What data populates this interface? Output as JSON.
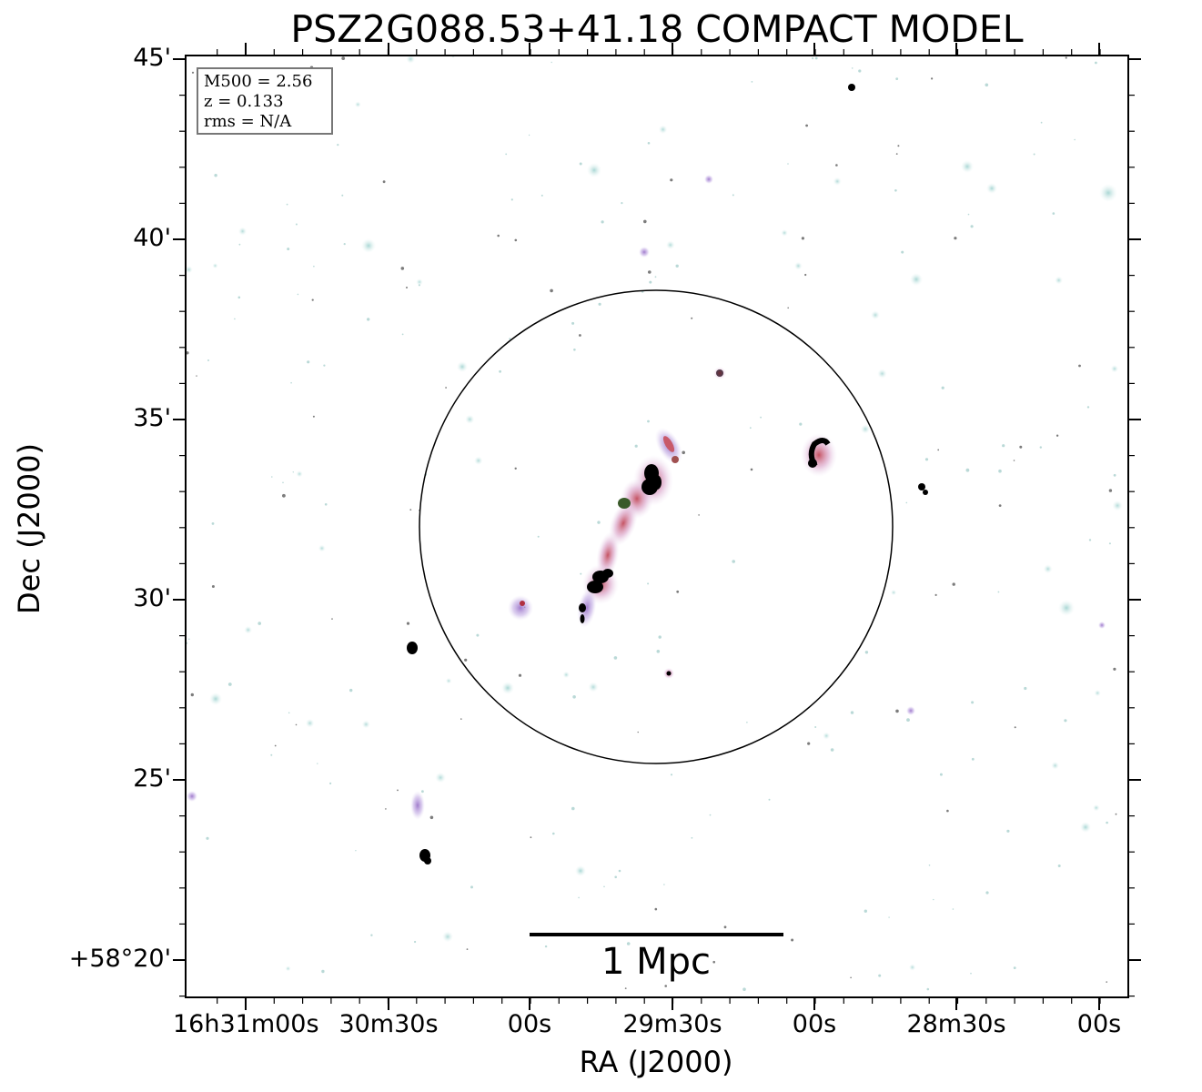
{
  "title": "PSZ2G088.53+41.18 COMPACT MODEL",
  "axes": {
    "xlabel": "RA (J2000)",
    "ylabel": "Dec (J2000)",
    "x_ticks": [
      "16h31m00s",
      "30m30s",
      "00s",
      "29m30s",
      "00s",
      "28m30s",
      "00s"
    ],
    "y_ticks": [
      "45'",
      "40'",
      "35'",
      "30'",
      "25'",
      "+58°20'"
    ]
  },
  "info": {
    "m500": "M500 = 2.56",
    "z": "z = 0.133",
    "rms": "rms = N/A"
  },
  "scale_bar": {
    "label": "1 Mpc"
  },
  "colors": {
    "background": "#ffffff",
    "source_cyan": "#bfe3e0",
    "source_purple": "#b48fd6",
    "source_red": "#cf6a6a",
    "source_core": "#000000"
  }
}
